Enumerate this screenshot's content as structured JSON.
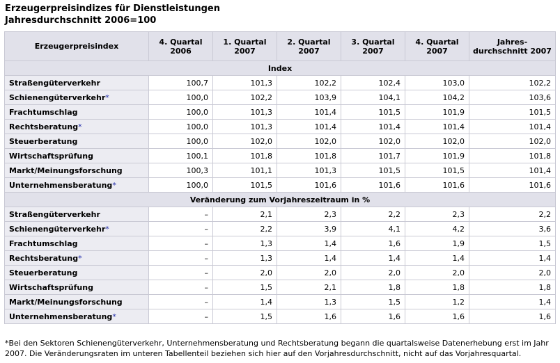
{
  "title": {
    "line1": "Erzeugerpreisindizes für Dienstleistungen",
    "line2": "Jahresdurchschnitt 2006=100"
  },
  "header": {
    "col0": "Erzeugerpreisindex",
    "cols": [
      [
        "4. Quartal",
        "2006"
      ],
      [
        "1. Quartal",
        "2007"
      ],
      [
        "2. Quartal",
        "2007"
      ],
      [
        "3. Quartal",
        "2007"
      ],
      [
        "4. Quartal",
        "2007"
      ],
      [
        "Jahres-",
        "durchschnitt 2007"
      ]
    ]
  },
  "sections": [
    {
      "title": "Index",
      "rows": [
        {
          "label": "Straßengüterverkehr",
          "star": "",
          "values": [
            "100,7",
            "101,3",
            "102,2",
            "102,4",
            "103,0",
            "102,2"
          ]
        },
        {
          "label": "Schienengüterverkehr",
          "star": "*",
          "values": [
            "100,0",
            "102,2",
            "103,9",
            "104,1",
            "104,2",
            "103,6"
          ]
        },
        {
          "label": "Frachtumschlag",
          "star": "",
          "values": [
            "100,0",
            "101,3",
            "101,4",
            "101,5",
            "101,9",
            "101,5"
          ]
        },
        {
          "label": "Rechtsberatung",
          "star": "*",
          "values": [
            "100,0",
            "101,3",
            "101,4",
            "101,4",
            "101,4",
            "101,4"
          ]
        },
        {
          "label": "Steuerberatung",
          "star": "",
          "values": [
            "100,0",
            "102,0",
            "102,0",
            "102,0",
            "102,0",
            "102,0"
          ]
        },
        {
          "label": "Wirtschaftsprüfung",
          "star": "",
          "values": [
            "100,1",
            "101,8",
            "101,8",
            "101,7",
            "101,9",
            "101,8"
          ]
        },
        {
          "label": "Markt/Meinungsforschung",
          "star": "",
          "values": [
            "100,3",
            "101,1",
            "101,3",
            "101,5",
            "101,5",
            "101,4"
          ]
        },
        {
          "label": "Unternehmensberatung",
          "star": "*",
          "values": [
            "100,0",
            "101,5",
            "101,6",
            "101,6",
            "101,6",
            "101,6"
          ]
        }
      ]
    },
    {
      "title": "Veränderung zum Vorjahreszeitraum in %",
      "rows": [
        {
          "label": "Straßengüterverkehr",
          "star": "",
          "values": [
            "–",
            "2,1",
            "2,3",
            "2,2",
            "2,3",
            "2,2"
          ]
        },
        {
          "label": "Schienengüterverkehr",
          "star": "*",
          "values": [
            "–",
            "2,2",
            "3,9",
            "4,1",
            "4,2",
            "3,6"
          ]
        },
        {
          "label": "Frachtumschlag",
          "star": "",
          "values": [
            "–",
            "1,3",
            "1,4",
            "1,6",
            "1,9",
            "1,5"
          ]
        },
        {
          "label": "Rechtsberatung",
          "star": "*",
          "values": [
            "–",
            "1,3",
            "1,4",
            "1,4",
            "1,4",
            "1,4"
          ]
        },
        {
          "label": "Steuerberatung",
          "star": "",
          "values": [
            "–",
            "2,0",
            "2,0",
            "2,0",
            "2,0",
            "2,0"
          ]
        },
        {
          "label": "Wirtschaftsprüfung",
          "star": "",
          "values": [
            "–",
            "1,5",
            "2,1",
            "1,8",
            "1,8",
            "1,8"
          ]
        },
        {
          "label": "Markt/Meinungsforschung",
          "star": "",
          "values": [
            "–",
            "1,4",
            "1,3",
            "1,5",
            "1,2",
            "1,4"
          ]
        },
        {
          "label": "Unternehmensberatung",
          "star": "*",
          "values": [
            "–",
            "1,5",
            "1,6",
            "1,6",
            "1,6",
            "1,6"
          ]
        }
      ]
    }
  ],
  "footnote": "*Bei den Sektoren Schienengüterverkehr, Unternehmensberatung und Rechtsberatung begann die quartalsweise Datenerhebung erst im Jahr 2007. Die Veränderungsraten im unteren Tabellenteil beziehen sich hier auf den Vorjahresdurchschnitt, nicht auf das Vorjahresquartal."
}
